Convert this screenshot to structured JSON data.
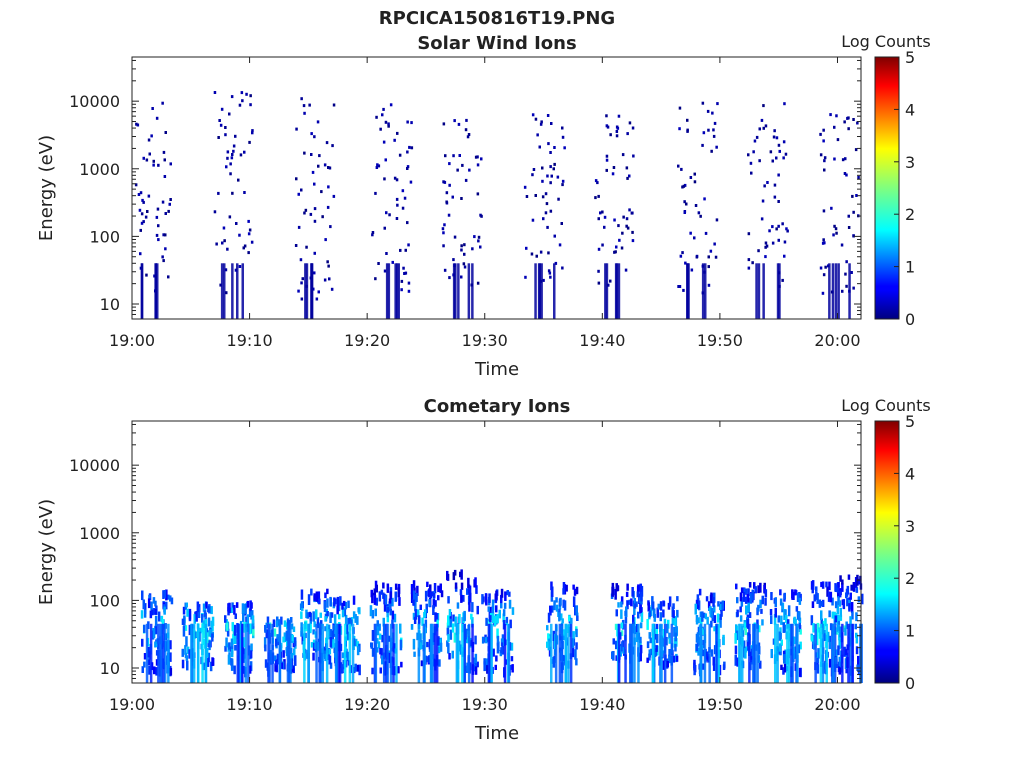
{
  "figure_title": "RPCICA150816T19.PNG",
  "colors": {
    "frame": "#222222",
    "low": "#00007f",
    "high": "#7f0000"
  },
  "chart_data": [
    {
      "type": "heatmap",
      "title": "Solar Wind Ions",
      "xlabel": "Time",
      "ylabel": "Energy (eV)",
      "x_ticks": [
        "19:00",
        "19:10",
        "19:20",
        "19:30",
        "19:40",
        "19:50",
        "20:00"
      ],
      "x_range_minutes": [
        0,
        62
      ],
      "y_scale": "log",
      "y_ticks": [
        "10",
        "100",
        "1000",
        "10000"
      ],
      "y_range_ev": [
        6,
        45000
      ],
      "colorbar": {
        "label": "Log Counts",
        "ticks": [
          "0",
          "1",
          "2",
          "3",
          "4",
          "5"
        ],
        "range": [
          0,
          5
        ],
        "colormap": "jet"
      },
      "bursts_minute": [
        1.5,
        8.5,
        15.5,
        22,
        28,
        35,
        41,
        48,
        54,
        60
      ],
      "bursts_energy_ev": [
        [
          15,
          10000
        ],
        [
          15,
          15000
        ],
        [
          12,
          12000
        ],
        [
          15,
          10000
        ],
        [
          20,
          8000
        ],
        [
          20,
          8000
        ],
        [
          15,
          8000
        ],
        [
          15,
          12000
        ],
        [
          15,
          10000
        ],
        [
          15,
          8000
        ]
      ],
      "typical_log_counts": [
        0,
        0.5
      ]
    },
    {
      "type": "heatmap",
      "title": "Cometary Ions",
      "xlabel": "Time",
      "ylabel": "Energy (eV)",
      "x_ticks": [
        "19:00",
        "19:10",
        "19:20",
        "19:30",
        "19:40",
        "19:50",
        "20:00"
      ],
      "x_range_minutes": [
        0,
        62
      ],
      "y_scale": "log",
      "y_ticks": [
        "10",
        "100",
        "1000",
        "10000"
      ],
      "y_range_ev": [
        6,
        45000
      ],
      "colorbar": {
        "label": "Log Counts",
        "ticks": [
          "0",
          "1",
          "2",
          "3",
          "4",
          "5"
        ],
        "range": [
          0,
          5
        ],
        "colormap": "jet"
      },
      "bursts_minute": [
        2,
        5.5,
        9,
        12.5,
        15.5,
        18,
        21.5,
        25,
        28,
        31,
        36.5,
        42,
        45,
        49,
        52.5,
        55.5,
        59,
        61
      ],
      "bursts_energy_ev": [
        [
          10,
          150
        ],
        [
          12,
          100
        ],
        [
          10,
          100
        ],
        [
          10,
          60
        ],
        [
          12,
          150
        ],
        [
          10,
          120
        ],
        [
          10,
          200
        ],
        [
          12,
          200
        ],
        [
          10,
          300
        ],
        [
          10,
          150
        ],
        [
          12,
          200
        ],
        [
          15,
          200
        ],
        [
          12,
          120
        ],
        [
          10,
          150
        ],
        [
          12,
          200
        ],
        [
          10,
          150
        ],
        [
          10,
          200
        ],
        [
          10,
          250
        ]
      ],
      "typical_log_counts": [
        0,
        2.2
      ]
    }
  ]
}
